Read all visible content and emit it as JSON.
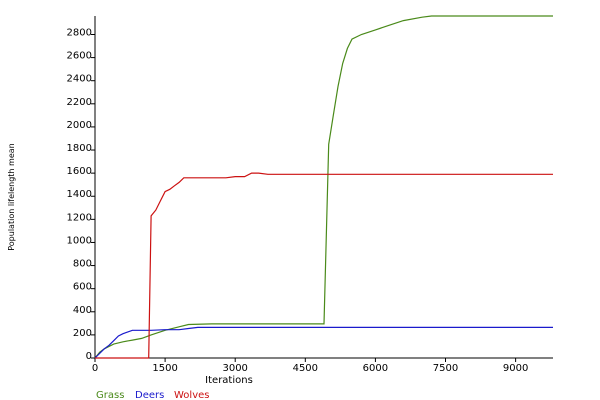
{
  "chart_data": {
    "type": "line",
    "xlabel": "Iterations",
    "ylabel": "Population lifelength mean",
    "xlim": [
      0,
      9800
    ],
    "ylim": [
      0,
      2960
    ],
    "x_ticks": [
      0,
      1500,
      3000,
      4500,
      6000,
      7500,
      9000
    ],
    "y_ticks": [
      0,
      200,
      400,
      600,
      800,
      1000,
      1200,
      1400,
      1600,
      1800,
      2000,
      2200,
      2400,
      2600,
      2800
    ],
    "grid": false,
    "legend_position": "bottom-left",
    "series": [
      {
        "name": "Grass",
        "color": "#4a8a1a",
        "points": [
          [
            0,
            0
          ],
          [
            100,
            50
          ],
          [
            200,
            80
          ],
          [
            400,
            120
          ],
          [
            600,
            140
          ],
          [
            800,
            155
          ],
          [
            1000,
            170
          ],
          [
            1200,
            200
          ],
          [
            1500,
            240
          ],
          [
            1800,
            270
          ],
          [
            2000,
            290
          ],
          [
            2500,
            295
          ],
          [
            3000,
            295
          ],
          [
            4000,
            295
          ],
          [
            4900,
            295
          ],
          [
            5000,
            1850
          ],
          [
            5100,
            2100
          ],
          [
            5200,
            2350
          ],
          [
            5300,
            2550
          ],
          [
            5400,
            2680
          ],
          [
            5500,
            2760
          ],
          [
            5700,
            2800
          ],
          [
            6000,
            2840
          ],
          [
            6300,
            2880
          ],
          [
            6600,
            2920
          ],
          [
            7000,
            2950
          ],
          [
            7200,
            2960
          ],
          [
            8000,
            2960
          ],
          [
            9800,
            2960
          ]
        ]
      },
      {
        "name": "Deers",
        "color": "#1a1acc",
        "points": [
          [
            0,
            0
          ],
          [
            200,
            80
          ],
          [
            300,
            110
          ],
          [
            400,
            150
          ],
          [
            500,
            190
          ],
          [
            600,
            210
          ],
          [
            800,
            240
          ],
          [
            1000,
            240
          ],
          [
            1200,
            240
          ],
          [
            1500,
            245
          ],
          [
            1800,
            245
          ],
          [
            2000,
            255
          ],
          [
            2200,
            265
          ],
          [
            2500,
            265
          ],
          [
            3000,
            265
          ],
          [
            5000,
            265
          ],
          [
            7000,
            265
          ],
          [
            9800,
            265
          ]
        ]
      },
      {
        "name": "Wolves",
        "color": "#cc1111",
        "points": [
          [
            0,
            0
          ],
          [
            500,
            0
          ],
          [
            1000,
            0
          ],
          [
            1150,
            0
          ],
          [
            1200,
            1230
          ],
          [
            1300,
            1280
          ],
          [
            1400,
            1360
          ],
          [
            1500,
            1440
          ],
          [
            1600,
            1460
          ],
          [
            1700,
            1490
          ],
          [
            1800,
            1520
          ],
          [
            1900,
            1560
          ],
          [
            2000,
            1560
          ],
          [
            2500,
            1560
          ],
          [
            2800,
            1560
          ],
          [
            3000,
            1570
          ],
          [
            3200,
            1570
          ],
          [
            3350,
            1600
          ],
          [
            3500,
            1600
          ],
          [
            3700,
            1590
          ],
          [
            5000,
            1590
          ],
          [
            7000,
            1590
          ],
          [
            9800,
            1590
          ]
        ]
      }
    ]
  }
}
